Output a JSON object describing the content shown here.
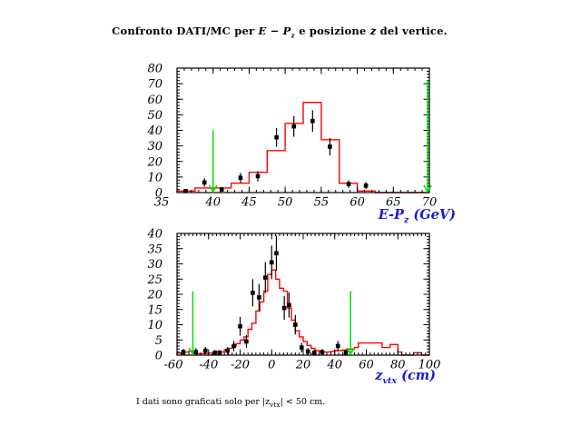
{
  "strings": {
    "title": {
      "t1": "Confronto DATI/MC per ",
      "math1": "E − P",
      "sub1": "z",
      "t2": " e posizione ",
      "math2": "z",
      "t3": " del vertice."
    },
    "footnote": {
      "t1": "I dati sono graficati solo per |z",
      "sub": "vtx",
      "t2": "| < 50 cm."
    }
  },
  "colors": {
    "mc_histogram": "#ff0000",
    "data_points": "#000000",
    "cut_arrow": "#00e000",
    "axis_title": "#1a1ad0",
    "frame": "#000000",
    "background": "#ffffff"
  },
  "chart_data": [
    {
      "type": "bar",
      "description": "E-Pz distribution, red MC histogram with black data points",
      "xlabel_main": "E-P",
      "xlabel_sub": "z",
      "xlabel_unit": " (GeV)",
      "xlim": [
        35,
        70
      ],
      "ylim": [
        0,
        80
      ],
      "xticks": [
        35,
        40,
        45,
        50,
        55,
        60,
        65,
        70
      ],
      "yticks": [
        0,
        10,
        20,
        30,
        40,
        50,
        60,
        70,
        80
      ],
      "xminor": 1,
      "yminor": 2,
      "grid": false,
      "mc_hist": {
        "bin_start": 35,
        "bin_width": 2.5,
        "values": [
          1,
          3,
          3,
          6,
          13,
          27,
          44.5,
          58,
          34,
          6,
          1,
          0,
          0,
          0
        ]
      },
      "data_points": {
        "marker": "filled-square",
        "x": [
          36.2,
          38.8,
          41.2,
          43.8,
          46.2,
          48.8,
          51.2,
          53.8,
          56.2,
          58.8,
          61.2
        ],
        "y": [
          1,
          6.5,
          2,
          9.5,
          10.5,
          35.5,
          42.5,
          46,
          29.5,
          5.5,
          4.5
        ],
        "yerr": [
          1,
          2.7,
          1.5,
          3.2,
          3.3,
          6,
          6.6,
          6.9,
          5.6,
          2.4,
          2.2
        ]
      },
      "arrows": [
        {
          "x": 40,
          "y_top": 40
        },
        {
          "x": 70,
          "y_top": 72
        }
      ]
    },
    {
      "type": "bar",
      "description": "z vertex position, red MC histogram with black data points",
      "xlabel_main": "z",
      "xlabel_sub": "vtx",
      "xlabel_unit": " (cm)",
      "xlim": [
        -60,
        100
      ],
      "ylim": [
        0,
        40
      ],
      "xticks": [
        -60,
        -40,
        -20,
        0,
        20,
        40,
        60,
        80,
        100
      ],
      "yticks": [
        0,
        5,
        10,
        15,
        20,
        25,
        30,
        35,
        40
      ],
      "xminor": 2.5,
      "yminor": 1,
      "grid": false,
      "mc_hist": {
        "bin_start": -60,
        "bin_width": 2.5,
        "values": [
          0.7,
          0.7,
          1,
          1.3,
          0.5,
          0.5,
          0.5,
          0.5,
          0.7,
          0.7,
          1,
          1,
          1.7,
          2.2,
          3,
          3.8,
          5,
          6,
          8.5,
          10.5,
          14.5,
          17.5,
          21,
          26.5,
          28,
          25,
          22,
          21,
          15.5,
          11.5,
          8,
          6,
          4.5,
          3.2,
          2.2,
          1.5,
          1.2,
          1,
          1,
          1.2,
          1.5,
          1.5,
          1.7,
          2,
          2,
          2.5,
          4,
          4,
          4,
          4,
          4,
          4,
          2.5,
          2.5,
          3.5,
          3.5,
          1,
          0,
          0,
          0,
          0.8,
          0.8,
          0,
          0
        ]
      },
      "data_points": {
        "marker": "filled-square",
        "x": [
          -56,
          -48,
          -42,
          -36,
          -33,
          -28,
          -24,
          -20,
          -16,
          -12,
          -8,
          -4,
          0,
          3,
          8,
          11,
          15,
          19,
          23,
          27,
          32,
          42,
          47
        ],
        "y": [
          1,
          1,
          1.5,
          0.8,
          0.8,
          1.5,
          3,
          9.5,
          4.5,
          20.5,
          19,
          25.5,
          30.5,
          33.5,
          15.5,
          16.5,
          10,
          2.5,
          1.2,
          0.8,
          1,
          3,
          0.8
        ],
        "yerr": [
          1,
          1,
          1.2,
          0.9,
          0.9,
          1.2,
          1.7,
          3.1,
          2.1,
          4.5,
          4.4,
          5.1,
          5.5,
          5.8,
          3.9,
          4.1,
          3.2,
          1.6,
          1.1,
          0.9,
          1,
          1.7,
          0.9
        ]
      },
      "arrows": [
        {
          "x": -50,
          "y_top": 21
        },
        {
          "x": 50,
          "y_top": 21
        }
      ]
    }
  ]
}
